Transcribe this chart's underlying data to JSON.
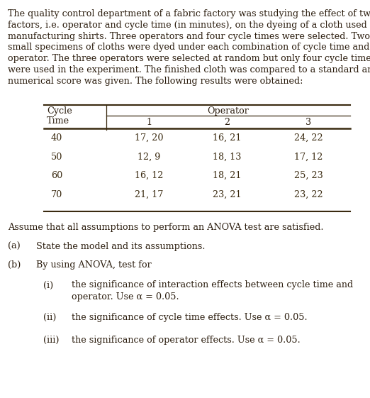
{
  "para_lines": [
    "The quality control department of a fabric factory was studying the effect of two",
    "factors, i.e. operator and cycle time (in minutes), on the dyeing of a cloth used in",
    "manufacturing shirts. Three operators and four cycle times were selected. Two",
    "small specimens of cloths were dyed under each combination of cycle time and",
    "operator. The three operators were selected at random but only four cycle times",
    "were used in the experiment. The finished cloth was compared to a standard and a",
    "numerical score was given. The following results were obtained:"
  ],
  "table_rows": [
    [
      "40",
      "17, 20",
      "16, 21",
      "24, 22"
    ],
    [
      "50",
      "12, 9",
      "18, 13",
      "17, 12"
    ],
    [
      "60",
      "16, 12",
      "18, 21",
      "25, 23"
    ],
    [
      "70",
      "21, 17",
      "23, 21",
      "23, 22"
    ]
  ],
  "assume_text": "Assume that all assumptions to perform an ANOVA test are satisfied.",
  "part_a_label": "(a)",
  "part_a_text": "State the model and its assumptions.",
  "part_b_label": "(b)",
  "part_b_text": "By using ANOVA, test for",
  "sub_i_label": "(i)",
  "sub_i_line1": "the significance of interaction effects between cycle time and",
  "sub_i_line2": "operator. Use α = 0.05.",
  "sub_ii_label": "(ii)",
  "sub_ii_text": "the significance of cycle time effects. Use α = 0.05.",
  "sub_iii_label": "(iii)",
  "sub_iii_text": "the significance of operator effects. Use α = 0.05.",
  "text_color": "#2b1d0e",
  "bg_color": "#ffffff",
  "font_size": 9.2,
  "table_data_color": "#3a2a10",
  "line_color": "#3a2a10"
}
